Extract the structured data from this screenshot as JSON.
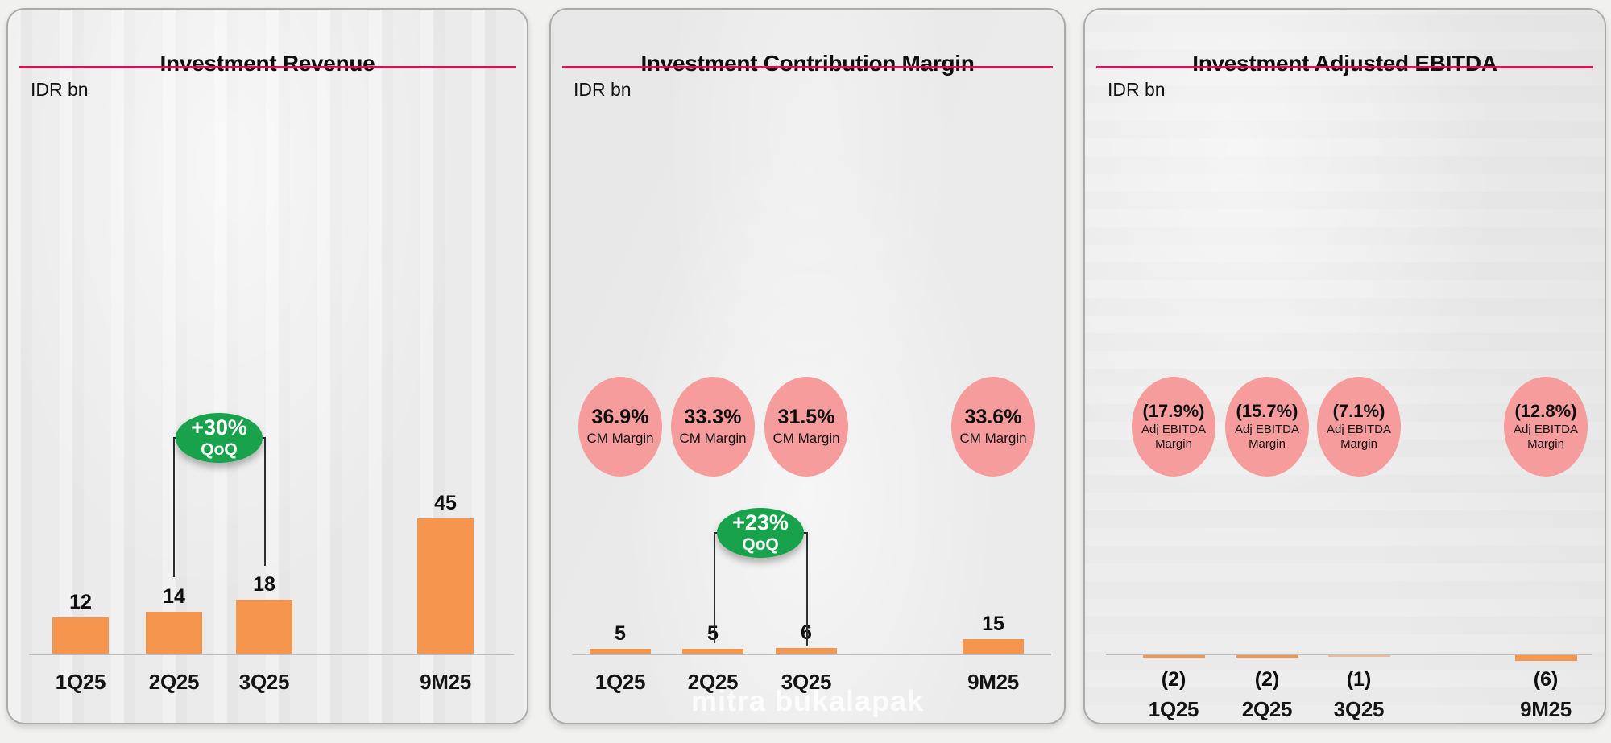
{
  "colors": {
    "bar_orange": "#F6954E",
    "bubble_pink": "#F79C9C",
    "badge_green": "#17A24B",
    "title_rule_crimson": "#D31558",
    "axis_gray": "#BDBDBD",
    "text": "#111111",
    "card_border": "#ABABAB",
    "page_background": "#F1F1F0"
  },
  "chart_data": [
    {
      "type": "bar",
      "title": "Investment Revenue",
      "unit": "IDR bn",
      "categories": [
        "1Q25",
        "2Q25",
        "3Q25",
        "9M25"
      ],
      "values": [
        12,
        14,
        18,
        45
      ],
      "bar_labels": [
        "12",
        "14",
        "18",
        "45"
      ],
      "ylim": [
        0,
        50
      ],
      "grid": "off",
      "badge": {
        "value": "+30%",
        "label": "QoQ",
        "between": [
          "2Q25",
          "3Q25"
        ]
      }
    },
    {
      "type": "bar",
      "title": "Investment Contribution Margin",
      "unit": "IDR bn",
      "categories": [
        "1Q25",
        "2Q25",
        "3Q25",
        "9M25"
      ],
      "values": [
        5,
        5,
        6,
        15
      ],
      "bar_labels": [
        "5",
        "5",
        "6",
        "15"
      ],
      "ylim": [
        0,
        20
      ],
      "grid": "off",
      "badge": {
        "value": "+23%",
        "label": "QoQ",
        "between": [
          "2Q25",
          "3Q25"
        ]
      },
      "bubbles": [
        {
          "value": "36.9%",
          "label": "CM Margin"
        },
        {
          "value": "33.3%",
          "label": "CM Margin"
        },
        {
          "value": "31.5%",
          "label": "CM Margin"
        },
        {
          "value": "33.6%",
          "label": "CM Margin"
        }
      ],
      "watermark": "mitra bukalapak"
    },
    {
      "type": "bar",
      "title": "Investment Adjusted EBITDA",
      "unit": "IDR bn",
      "categories": [
        "1Q25",
        "2Q25",
        "3Q25",
        "9M25"
      ],
      "values": [
        -2,
        -2,
        -1,
        -6
      ],
      "bar_labels": [
        "(2)",
        "(2)",
        "(1)",
        "(6)"
      ],
      "ylim": [
        -8,
        2
      ],
      "grid": "off",
      "bubbles": [
        {
          "value": "(17.9%)",
          "label": "Adj EBITDA Margin"
        },
        {
          "value": "(15.7%)",
          "label": "Adj EBITDA Margin"
        },
        {
          "value": "(7.1%)",
          "label": "Adj EBITDA Margin"
        },
        {
          "value": "(12.8%)",
          "label": "Adj EBITDA Margin"
        }
      ]
    }
  ]
}
